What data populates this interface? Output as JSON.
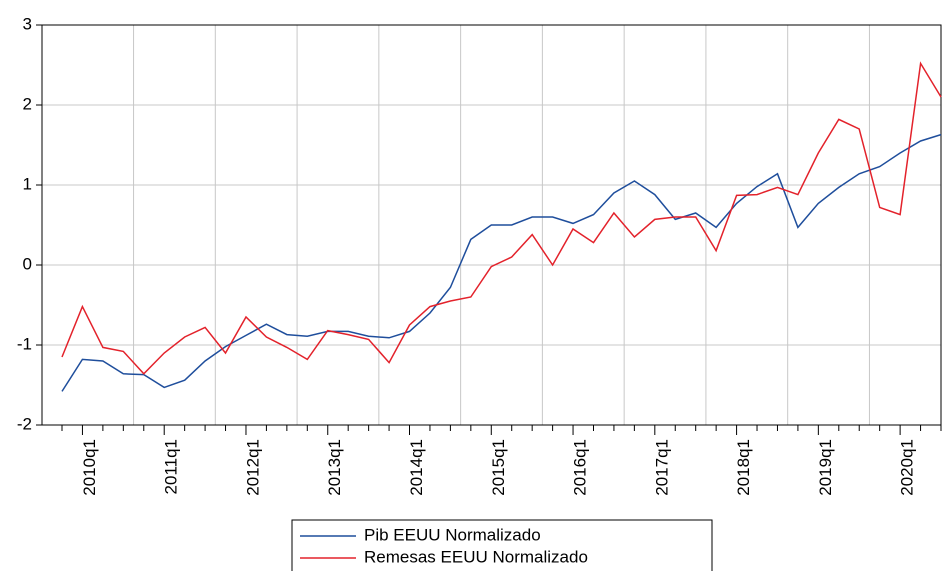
{
  "chart_data": {
    "type": "line",
    "categories": [
      null,
      "2010q1",
      null,
      null,
      null,
      "2011q1",
      null,
      null,
      null,
      "2012q1",
      null,
      null,
      null,
      "2013q1",
      null,
      null,
      null,
      "2014q1",
      null,
      null,
      null,
      "2015q1",
      null,
      null,
      null,
      "2016q1",
      null,
      null,
      null,
      "2017q1",
      null,
      null,
      null,
      "2018q1",
      null,
      null,
      null,
      "2019q1",
      null,
      null,
      null,
      "2020q1",
      null,
      null
    ],
    "series": [
      {
        "name": "Pib EEUU Normalizado",
        "color": "#1f4e9c",
        "values": [
          -1.58,
          -1.18,
          -1.2,
          -1.36,
          -1.37,
          -1.53,
          -1.44,
          -1.2,
          -1.02,
          -0.88,
          -0.74,
          -0.87,
          -0.89,
          -0.83,
          -0.83,
          -0.89,
          -0.91,
          -0.83,
          -0.6,
          -0.28,
          0.32,
          0.5,
          0.5,
          0.6,
          0.6,
          0.52,
          0.63,
          0.9,
          1.05,
          0.88,
          0.57,
          0.65,
          0.47,
          0.77,
          0.98,
          1.14,
          0.47,
          0.77,
          0.97,
          1.14,
          1.23,
          1.4,
          1.55,
          1.63
        ]
      },
      {
        "name": "Remesas EEUU Normalizado",
        "color": "#e3222b",
        "values": [
          -1.15,
          -0.52,
          -1.03,
          -1.08,
          -1.36,
          -1.1,
          -0.9,
          -0.78,
          -1.1,
          -0.65,
          -0.9,
          -1.03,
          -1.18,
          -0.82,
          -0.87,
          -0.93,
          -1.22,
          -0.75,
          -0.52,
          -0.45,
          -0.4,
          -0.02,
          0.1,
          0.38,
          0.0,
          0.45,
          0.28,
          0.65,
          0.35,
          0.57,
          0.6,
          0.6,
          0.18,
          0.87,
          0.88,
          0.97,
          0.88,
          1.4,
          1.82,
          1.7,
          0.72,
          0.63,
          2.52,
          2.1
        ]
      }
    ],
    "ylim": [
      -2,
      3
    ],
    "yticks": [
      -2,
      -1,
      0,
      1,
      2,
      3
    ],
    "grid": true
  }
}
